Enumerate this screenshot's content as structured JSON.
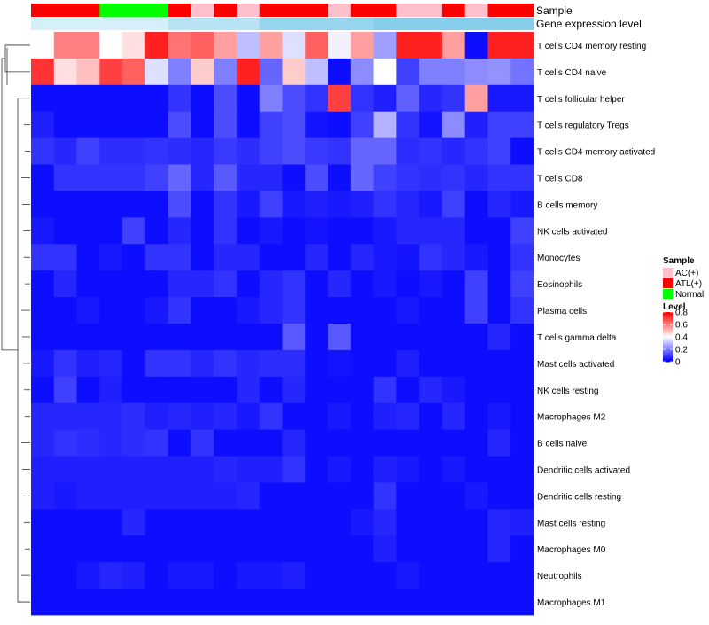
{
  "chart_data": {
    "type": "heatmap",
    "top_annotations": {
      "sample_label": "Sample",
      "gene_label": "Gene expression level",
      "sample_groups": [
        "ATL(+)",
        "ATL(+)",
        "ATL(+)",
        "Normal",
        "Normal",
        "Normal",
        "ATL(+)",
        "AC(+)",
        "ATL(+)",
        "AC(+)",
        "ATL(+)",
        "ATL(+)",
        "ATL(+)",
        "AC(+)",
        "ATL(+)",
        "ATL(+)",
        "AC(+)",
        "AC(+)",
        "ATL(+)",
        "AC(+)",
        "ATL(+)",
        "ATL(+)"
      ],
      "gene_levels": [
        0.1,
        0.1,
        0.1,
        0.1,
        0.1,
        0.1,
        0.3,
        0.3,
        0.3,
        0.3,
        0.5,
        0.5,
        0.5,
        0.5,
        0.5,
        0.6,
        0.6,
        0.6,
        0.6,
        0.6,
        0.6,
        0.6
      ]
    },
    "rows": [
      "T cells CD4 memory resting",
      "T cells CD4 naive",
      "T cells follicular helper",
      "T cells regulatory  Tregs",
      "T cells CD4 memory activated",
      "T cells CD8",
      "B cells memory",
      "NK cells activated",
      "Monocytes",
      "Eosinophils",
      "Plasma cells",
      "T cells gamma delta",
      "Mast cells activated",
      "NK cells resting",
      "Macrophages M2",
      "B cells naive",
      "Dendritic cells activated",
      "Dendritic cells resting",
      "Mast cells resting",
      "Macrophages M0",
      "Neutrophils",
      "Macrophages M1"
    ],
    "values": [
      [
        0.4,
        0.6,
        0.6,
        0.4,
        0.45,
        0.75,
        0.62,
        0.65,
        0.55,
        0.3,
        0.55,
        0.35,
        0.65,
        0.38,
        0.55,
        0.25,
        0.75,
        0.75,
        0.55,
        0.02,
        0.75,
        0.75
      ],
      [
        0.72,
        0.45,
        0.5,
        0.7,
        0.65,
        0.35,
        0.2,
        0.48,
        0.2,
        0.75,
        0.16,
        0.48,
        0.3,
        0.02,
        0.22,
        0.4,
        0.1,
        0.2,
        0.2,
        0.22,
        0.23,
        0.18
      ],
      [
        0.02,
        0.02,
        0.02,
        0.02,
        0.02,
        0.02,
        0.08,
        0.02,
        0.12,
        0.02,
        0.2,
        0.12,
        0.08,
        0.7,
        0.08,
        0.05,
        0.15,
        0.06,
        0.08,
        0.55,
        0.04,
        0.04
      ],
      [
        0.05,
        0.02,
        0.02,
        0.02,
        0.02,
        0.02,
        0.12,
        0.02,
        0.12,
        0.02,
        0.1,
        0.12,
        0.03,
        0.02,
        0.1,
        0.28,
        0.08,
        0.03,
        0.22,
        0.05,
        0.1,
        0.1
      ],
      [
        0.08,
        0.06,
        0.1,
        0.07,
        0.07,
        0.08,
        0.07,
        0.06,
        0.09,
        0.07,
        0.1,
        0.12,
        0.09,
        0.08,
        0.16,
        0.16,
        0.07,
        0.08,
        0.06,
        0.08,
        0.1,
        0.02
      ],
      [
        0.02,
        0.08,
        0.08,
        0.08,
        0.08,
        0.1,
        0.16,
        0.06,
        0.14,
        0.06,
        0.06,
        0.02,
        0.12,
        0.02,
        0.16,
        0.1,
        0.08,
        0.07,
        0.08,
        0.06,
        0.08,
        0.08
      ],
      [
        0.02,
        0.02,
        0.02,
        0.02,
        0.02,
        0.02,
        0.12,
        0.02,
        0.08,
        0.04,
        0.1,
        0.04,
        0.05,
        0.04,
        0.05,
        0.08,
        0.06,
        0.04,
        0.1,
        0.02,
        0.06,
        0.04
      ],
      [
        0.04,
        0.02,
        0.02,
        0.02,
        0.1,
        0.02,
        0.06,
        0.02,
        0.08,
        0.02,
        0.04,
        0.02,
        0.03,
        0.02,
        0.02,
        0.04,
        0.06,
        0.06,
        0.06,
        0.02,
        0.02,
        0.1
      ],
      [
        0.08,
        0.08,
        0.02,
        0.04,
        0.02,
        0.08,
        0.08,
        0.02,
        0.06,
        0.06,
        0.02,
        0.02,
        0.06,
        0.02,
        0.06,
        0.04,
        0.03,
        0.08,
        0.06,
        0.04,
        0.02,
        0.08
      ],
      [
        0.02,
        0.06,
        0.02,
        0.02,
        0.02,
        0.02,
        0.06,
        0.06,
        0.08,
        0.02,
        0.06,
        0.08,
        0.02,
        0.06,
        0.02,
        0.04,
        0.02,
        0.04,
        0.02,
        0.1,
        0.02,
        0.1
      ],
      [
        0.02,
        0.02,
        0.04,
        0.02,
        0.02,
        0.04,
        0.08,
        0.02,
        0.02,
        0.04,
        0.06,
        0.08,
        0.02,
        0.02,
        0.02,
        0.02,
        0.04,
        0.02,
        0.02,
        0.1,
        0.02,
        0.08
      ],
      [
        0.02,
        0.02,
        0.02,
        0.02,
        0.02,
        0.02,
        0.02,
        0.02,
        0.02,
        0.02,
        0.02,
        0.14,
        0.02,
        0.14,
        0.02,
        0.02,
        0.02,
        0.02,
        0.02,
        0.02,
        0.06,
        0.02
      ],
      [
        0.04,
        0.08,
        0.05,
        0.06,
        0.02,
        0.08,
        0.08,
        0.06,
        0.08,
        0.06,
        0.07,
        0.07,
        0.02,
        0.03,
        0.02,
        0.02,
        0.05,
        0.02,
        0.02,
        0.02,
        0.02,
        0.02
      ],
      [
        0.02,
        0.1,
        0.02,
        0.05,
        0.02,
        0.02,
        0.02,
        0.02,
        0.02,
        0.06,
        0.02,
        0.06,
        0.02,
        0.02,
        0.02,
        0.08,
        0.02,
        0.06,
        0.04,
        0.02,
        0.02,
        0.02
      ],
      [
        0.06,
        0.06,
        0.06,
        0.06,
        0.07,
        0.05,
        0.06,
        0.05,
        0.06,
        0.04,
        0.08,
        0.02,
        0.02,
        0.04,
        0.02,
        0.05,
        0.06,
        0.02,
        0.06,
        0.02,
        0.04,
        0.02
      ],
      [
        0.06,
        0.08,
        0.07,
        0.06,
        0.07,
        0.08,
        0.02,
        0.08,
        0.02,
        0.02,
        0.02,
        0.06,
        0.02,
        0.02,
        0.02,
        0.02,
        0.02,
        0.02,
        0.02,
        0.02,
        0.06,
        0.02
      ],
      [
        0.05,
        0.05,
        0.05,
        0.05,
        0.05,
        0.05,
        0.05,
        0.05,
        0.06,
        0.05,
        0.05,
        0.08,
        0.02,
        0.04,
        0.02,
        0.05,
        0.04,
        0.02,
        0.04,
        0.02,
        0.02,
        0.02
      ],
      [
        0.05,
        0.04,
        0.05,
        0.05,
        0.05,
        0.05,
        0.05,
        0.05,
        0.05,
        0.06,
        0.02,
        0.02,
        0.02,
        0.02,
        0.02,
        0.08,
        0.02,
        0.02,
        0.02,
        0.04,
        0.02,
        0.02
      ],
      [
        0.02,
        0.02,
        0.02,
        0.02,
        0.06,
        0.02,
        0.02,
        0.02,
        0.02,
        0.02,
        0.02,
        0.02,
        0.02,
        0.02,
        0.04,
        0.06,
        0.02,
        0.02,
        0.02,
        0.02,
        0.06,
        0.05
      ],
      [
        0.02,
        0.02,
        0.02,
        0.02,
        0.02,
        0.02,
        0.02,
        0.02,
        0.02,
        0.02,
        0.02,
        0.02,
        0.02,
        0.02,
        0.02,
        0.05,
        0.02,
        0.02,
        0.02,
        0.02,
        0.06,
        0.02
      ],
      [
        0.02,
        0.02,
        0.04,
        0.06,
        0.05,
        0.02,
        0.04,
        0.04,
        0.02,
        0.04,
        0.04,
        0.05,
        0.02,
        0.02,
        0.02,
        0.02,
        0.04,
        0.02,
        0.02,
        0.02,
        0.02,
        0.02
      ],
      [
        0.02,
        0.02,
        0.02,
        0.02,
        0.02,
        0.02,
        0.02,
        0.02,
        0.02,
        0.02,
        0.02,
        0.02,
        0.02,
        0.02,
        0.02,
        0.02,
        0.02,
        0.02,
        0.02,
        0.02,
        0.02,
        0.02
      ]
    ],
    "color_scale": {
      "low": "#0000ff",
      "mid": "#ffffff",
      "high": "#ff0000",
      "range": [
        0,
        0.8
      ]
    },
    "legend": {
      "sample_title": "Sample",
      "sample_entries": [
        {
          "label": "AC(+)",
          "color": "#ffc0cb"
        },
        {
          "label": "ATL(+)",
          "color": "#ff0000"
        },
        {
          "label": "Normal",
          "color": "#00ff00"
        }
      ],
      "level_title": "Level",
      "level_ticks": [
        "0.8",
        "0.6",
        "0.4",
        "0.2",
        "0"
      ],
      "level_tick_values": [
        0.8,
        0.6,
        0.4,
        0.2,
        0
      ]
    },
    "gene_scale": {
      "low": "#e6f7fc",
      "high": "#87ceeb"
    },
    "dendrogram": "rows"
  }
}
